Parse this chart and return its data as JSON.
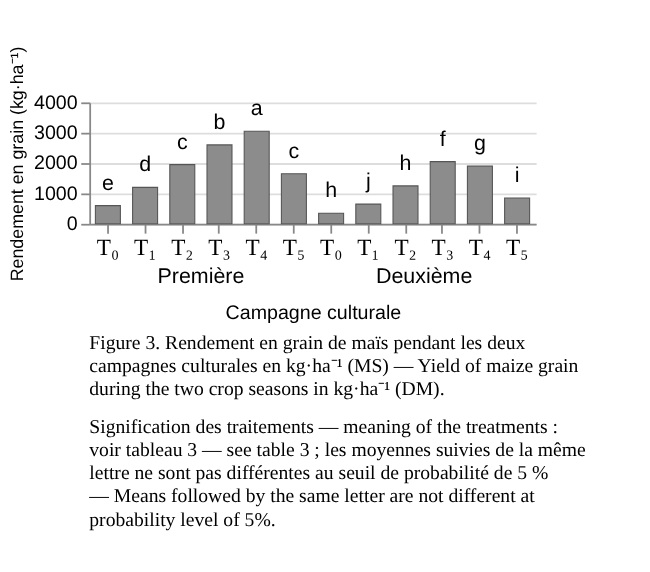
{
  "chart_data": {
    "type": "bar",
    "ylabel": "Rendement en grain (kg·ha⁻¹)",
    "xlabel": "Campagne culturale",
    "categories": [
      "T₀",
      "T₁",
      "T₂",
      "T₃",
      "T₄",
      "T₅",
      "T₀",
      "T₁",
      "T₂",
      "T₃",
      "T₄",
      "T₅"
    ],
    "values": [
      600,
      1200,
      1950,
      2600,
      3050,
      1650,
      350,
      650,
      1250,
      2050,
      1900,
      850
    ],
    "value_labels": [
      "e",
      "d",
      "c",
      "b",
      "a",
      "c",
      "h",
      "j",
      "h",
      "f",
      "g",
      "i"
    ],
    "color": "#8c8c8c",
    "ylim": [
      0,
      4000
    ],
    "yticks": [
      0,
      1000,
      2000,
      3000,
      4000
    ],
    "grid": "y",
    "annotations": [
      "Première",
      "Deuxième",
      "Figure 3. Rendement en grain de maïs pendant les deux campagnes culturales en kg·ha⁻¹ (MS) — Yield of maize grain during the two crop seasons in kg·ha⁻¹ (DM).",
      "Signification des traitements — meaning of the treatments : voir tableau 3 — see table 3 ; les moyennes suivies de la même lettre ne sont pas différentes au seuil de probabilité de 5 % — Means followed by the same letter are not different at probability level of 5%."
    ]
  }
}
